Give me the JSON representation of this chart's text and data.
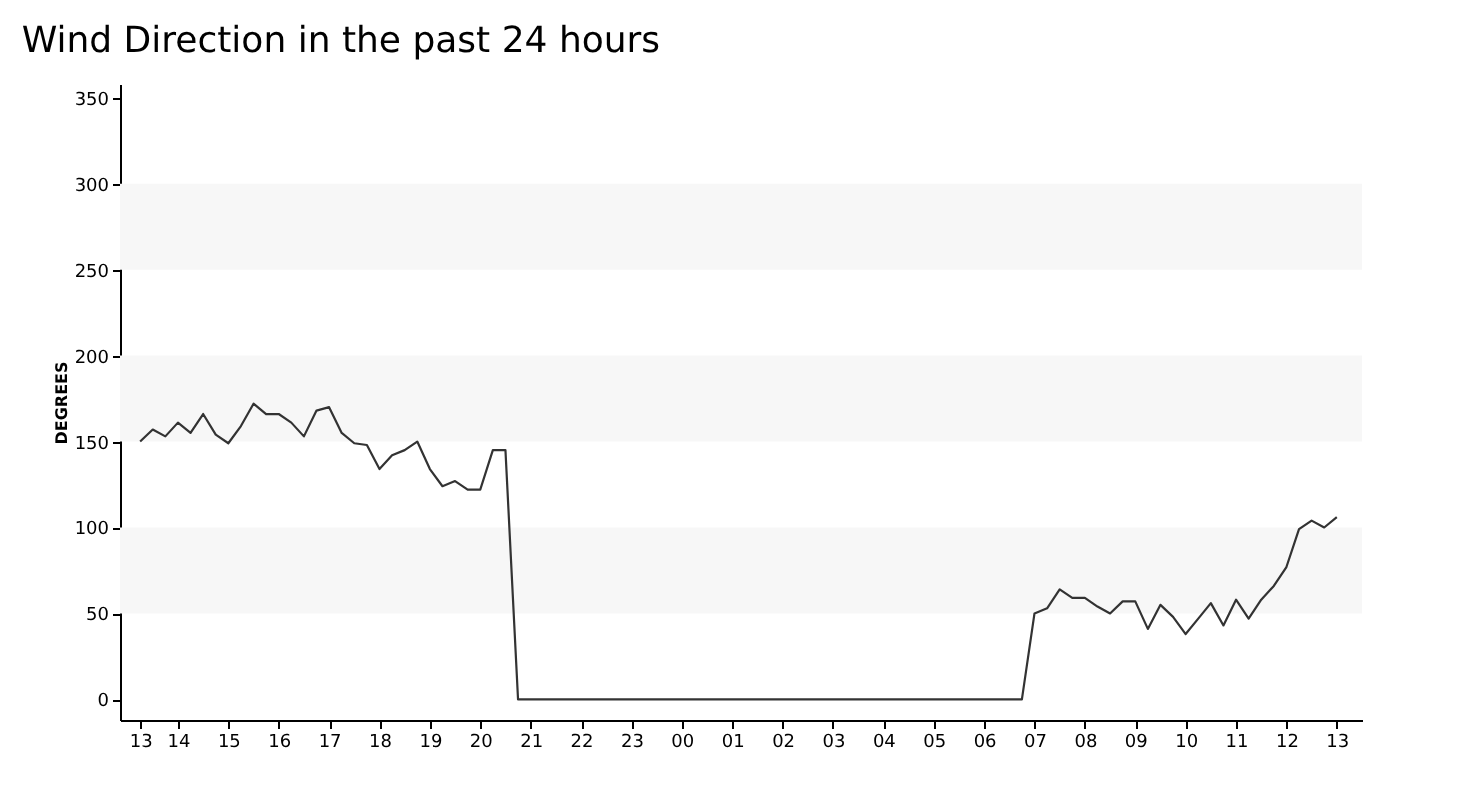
{
  "chart_data": {
    "type": "line",
    "title": "Wind Direction in the past 24 hours",
    "ylabel": "DEGREES",
    "x": [
      13.25,
      13.5,
      13.75,
      14,
      14.25,
      14.5,
      14.75,
      15,
      15.25,
      15.5,
      15.75,
      16,
      16.25,
      16.5,
      16.75,
      17,
      17.25,
      17.5,
      17.75,
      18,
      18.25,
      18.5,
      18.75,
      19,
      19.25,
      19.5,
      19.75,
      20,
      20.25,
      20.5,
      20.75,
      30.75,
      31,
      31.25,
      31.5,
      31.75,
      32,
      32.25,
      32.5,
      32.75,
      33,
      33.25,
      33.5,
      33.75,
      34,
      34.25,
      34.5,
      34.75,
      35,
      35.25,
      35.5,
      35.75,
      36,
      36.25,
      36.5,
      36.75,
      37
    ],
    "series": [
      {
        "color": "#333333",
        "values": [
          150,
          157,
          153,
          161,
          155,
          166,
          154,
          149,
          159,
          172,
          166,
          166,
          161,
          153,
          168,
          170,
          155,
          149,
          148,
          134,
          142,
          145,
          150,
          134,
          124,
          127,
          122,
          122,
          145,
          145,
          0,
          0,
          50,
          53,
          64,
          59,
          59,
          54,
          50,
          57,
          57,
          41,
          55,
          48,
          38,
          47,
          56,
          43,
          58,
          47,
          58,
          66,
          77,
          99,
          104,
          100,
          106
        ]
      }
    ],
    "xlim": [
      12.85,
      37.5
    ],
    "ylim": [
      -12,
      358
    ],
    "xticks": [
      {
        "value": 13.25,
        "label": "13"
      },
      {
        "value": 14,
        "label": "14"
      },
      {
        "value": 15,
        "label": "15"
      },
      {
        "value": 16,
        "label": "16"
      },
      {
        "value": 17,
        "label": "17"
      },
      {
        "value": 18,
        "label": "18"
      },
      {
        "value": 19,
        "label": "19"
      },
      {
        "value": 20,
        "label": "20"
      },
      {
        "value": 21,
        "label": "21"
      },
      {
        "value": 22,
        "label": "22"
      },
      {
        "value": 23,
        "label": "23"
      },
      {
        "value": 24,
        "label": "00"
      },
      {
        "value": 25,
        "label": "01"
      },
      {
        "value": 26,
        "label": "02"
      },
      {
        "value": 27,
        "label": "03"
      },
      {
        "value": 28,
        "label": "04"
      },
      {
        "value": 29,
        "label": "05"
      },
      {
        "value": 30,
        "label": "06"
      },
      {
        "value": 31,
        "label": "07"
      },
      {
        "value": 32,
        "label": "08"
      },
      {
        "value": 33,
        "label": "09"
      },
      {
        "value": 34,
        "label": "10"
      },
      {
        "value": 35,
        "label": "11"
      },
      {
        "value": 36,
        "label": "12"
      },
      {
        "value": 37,
        "label": "13"
      }
    ],
    "yticks": [
      0,
      50,
      100,
      150,
      200,
      250,
      300,
      350
    ],
    "bands": [
      {
        "axis": "y",
        "from": 50,
        "to": 100,
        "color": "#f7f7f7"
      },
      {
        "axis": "y",
        "from": 150,
        "to": 200,
        "color": "#f7f7f7"
      },
      {
        "axis": "y",
        "from": 250,
        "to": 300,
        "color": "#f7f7f7"
      }
    ],
    "grid": false,
    "marker": "none",
    "line_style": "solid"
  }
}
